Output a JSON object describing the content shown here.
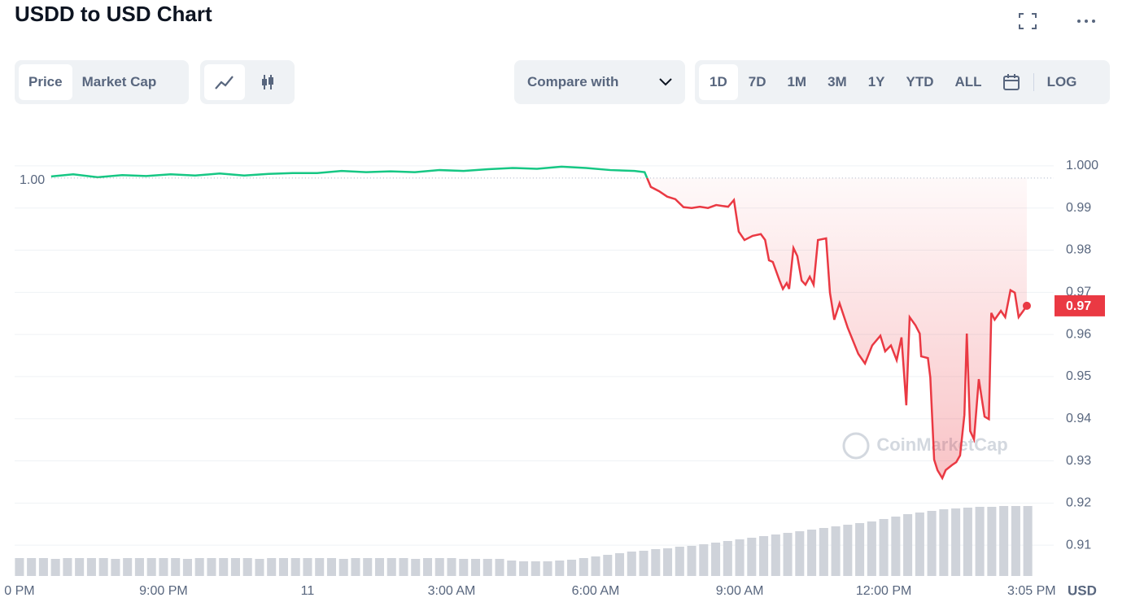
{
  "chart_data": {
    "type": "line",
    "title": "USDD to USD Chart",
    "tabs": [
      "Price",
      "Market Cap"
    ],
    "compare_label": "Compare with",
    "ranges": [
      "1D",
      "7D",
      "1M",
      "3M",
      "1Y",
      "YTD",
      "ALL"
    ],
    "log_label": "LOG",
    "watermark": "CoinMarketCap",
    "y_unit": "USD",
    "up_color": "#16c784",
    "down_color": "#ea3943",
    "volume_color": "#cfd3da",
    "grid": true,
    "xlim": [
      -6.1,
      15.54
    ],
    "ylim": [
      0.9027,
      1.0104
    ],
    "xticks": [
      {
        "value": -6,
        "label": "0 PM"
      },
      {
        "value": -3,
        "label": "9:00 PM"
      },
      {
        "value": 0,
        "label": "11"
      },
      {
        "value": 3,
        "label": "3:00 AM"
      },
      {
        "value": 6,
        "label": "6:00 AM"
      },
      {
        "value": 9,
        "label": "9:00 AM"
      },
      {
        "value": 12,
        "label": "12:00 PM"
      },
      {
        "value": 15.08,
        "label": "3:05 PM"
      }
    ],
    "yticks": [
      0.91,
      0.92,
      0.93,
      0.94,
      0.95,
      0.96,
      0.97,
      0.98,
      0.99,
      {
        "value": 1,
        "label": "1.000"
      }
    ],
    "open_price": {
      "value": 0.9971,
      "label": "1.00"
    },
    "last_price": {
      "value": 0.9668,
      "label": "0.97"
    },
    "x": [
      -5.34,
      -4.88,
      -4.37,
      -3.86,
      -3.36,
      -2.85,
      -2.34,
      -1.83,
      -1.32,
      -0.81,
      -0.31,
      0.2,
      0.71,
      1.22,
      1.73,
      2.24,
      2.75,
      3.25,
      3.76,
      4.27,
      4.78,
      5.29,
      5.8,
      6.31,
      6.81,
      7.02,
      7.15,
      7.32,
      7.49,
      7.66,
      7.83,
      8,
      8.17,
      8.34,
      8.51,
      8.76,
      8.88,
      8.98,
      9.1,
      9.27,
      9.44,
      9.53,
      9.61,
      9.69,
      9.83,
      9.9,
      9.98,
      10.03,
      10.12,
      10.2,
      10.29,
      10.37,
      10.46,
      10.54,
      10.63,
      10.8,
      10.88,
      10.97,
      11.08,
      11.25,
      11.47,
      11.61,
      11.76,
      11.93,
      12.03,
      12.15,
      12.27,
      12.37,
      12.47,
      12.54,
      12.66,
      12.75,
      12.78,
      12.92,
      12.97,
      13.05,
      13.12,
      13.22,
      13.29,
      13.42,
      13.51,
      13.59,
      13.68,
      13.73,
      13.8,
      13.88,
      13.98,
      14.1,
      14.19,
      14.24,
      14.31,
      14.44,
      14.53,
      14.64,
      14.73,
      14.81,
      14.9,
      14.98
    ],
    "values": [
      0.9975,
      0.998,
      0.9973,
      0.9978,
      0.9976,
      0.998,
      0.9977,
      0.9982,
      0.9977,
      0.9981,
      0.9983,
      0.9983,
      0.9988,
      0.9985,
      0.9987,
      0.9985,
      0.999,
      0.9988,
      0.9992,
      0.9995,
      0.9993,
      0.9998,
      0.9995,
      0.999,
      0.9988,
      0.9985,
      0.995,
      0.994,
      0.9927,
      0.9921,
      0.9902,
      0.99,
      0.9903,
      0.99,
      0.9907,
      0.9903,
      0.9919,
      0.9844,
      0.9824,
      0.9834,
      0.9838,
      0.9824,
      0.9776,
      0.9772,
      0.9728,
      0.9708,
      0.9722,
      0.9708,
      0.9805,
      0.9786,
      0.9728,
      0.9718,
      0.9737,
      0.9718,
      0.9824,
      0.9828,
      0.9699,
      0.9635,
      0.9674,
      0.9616,
      0.9554,
      0.9531,
      0.9574,
      0.9597,
      0.956,
      0.9574,
      0.9539,
      0.9593,
      0.9432,
      0.9641,
      0.9622,
      0.9602,
      0.9548,
      0.9544,
      0.9498,
      0.9303,
      0.9278,
      0.9259,
      0.9278,
      0.929,
      0.9297,
      0.9313,
      0.9409,
      0.9602,
      0.9371,
      0.9351,
      0.9494,
      0.9405,
      0.9399,
      0.9651,
      0.9635,
      0.9656,
      0.9641,
      0.9705,
      0.9699,
      0.9641,
      0.9655,
      0.9668
    ],
    "volume": {
      "x": [
        -6,
        -5.75,
        -5.5,
        -5.25,
        -5,
        -4.75,
        -4.5,
        -4.25,
        -4,
        -3.75,
        -3.5,
        -3.25,
        -3,
        -2.75,
        -2.5,
        -2.25,
        -2,
        -1.75,
        -1.5,
        -1.25,
        -1,
        -0.75,
        -0.5,
        -0.25,
        0,
        0.25,
        0.5,
        0.75,
        1,
        1.25,
        1.5,
        1.75,
        2,
        2.25,
        2.5,
        2.75,
        3,
        3.25,
        3.5,
        3.75,
        4,
        4.25,
        4.5,
        4.75,
        5,
        5.25,
        5.5,
        5.75,
        6,
        6.25,
        6.5,
        6.75,
        7,
        7.25,
        7.5,
        7.75,
        8,
        8.25,
        8.5,
        8.75,
        9,
        9.25,
        9.5,
        9.75,
        10,
        10.25,
        10.5,
        10.75,
        11,
        11.25,
        11.5,
        11.75,
        12,
        12.25,
        12.5,
        12.75,
        13,
        13.25,
        13.5,
        13.75,
        14,
        14.25,
        14.5,
        14.75,
        15
      ],
      "values": [
        22,
        22,
        22,
        21,
        22,
        22,
        22,
        22,
        21,
        22,
        22,
        22,
        22,
        22,
        21,
        22,
        22,
        22,
        22,
        22,
        21,
        22,
        22,
        22,
        22,
        22,
        22,
        21,
        22,
        22,
        22,
        22,
        22,
        21,
        22,
        22,
        22,
        21,
        21,
        21,
        21,
        19,
        18,
        18,
        18,
        19,
        20,
        22,
        24,
        26,
        28,
        30,
        31,
        33,
        34,
        36,
        37,
        39,
        41,
        43,
        45,
        47,
        49,
        51,
        53,
        55,
        57,
        59,
        61,
        63,
        65,
        67,
        70,
        73,
        76,
        78,
        80,
        82,
        83,
        84,
        85,
        85,
        86,
        86,
        86
      ]
    }
  }
}
